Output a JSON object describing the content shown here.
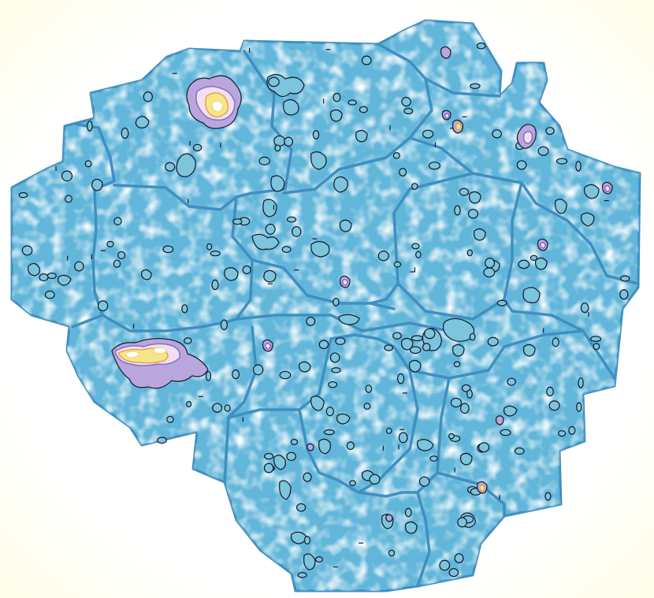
{
  "map": {
    "colors": {
      "land": "#62b6da",
      "border": "#3f8fc0",
      "contour": "#14182a",
      "low_density": "#7cc5dc",
      "mid_density": "#b9a6dc",
      "high_density": "#f7e58a",
      "peak": "#ffffff"
    },
    "regions": [
      {
        "id": "north-west-1"
      },
      {
        "id": "north-west-2"
      },
      {
        "id": "north-central"
      },
      {
        "id": "north-east-1"
      },
      {
        "id": "north-east-2"
      },
      {
        "id": "west"
      },
      {
        "id": "central-west"
      },
      {
        "id": "central"
      },
      {
        "id": "east"
      },
      {
        "id": "south-west"
      },
      {
        "id": "south-central"
      },
      {
        "id": "south-east"
      },
      {
        "id": "south"
      }
    ],
    "hotspots": [
      {
        "id": "hotspot-north-west",
        "level": "high"
      },
      {
        "id": "hotspot-west",
        "level": "high"
      },
      {
        "id": "hotspot-north-east",
        "level": "medium"
      },
      {
        "id": "hotspot-east",
        "level": "medium"
      },
      {
        "id": "hotspot-central",
        "level": "medium"
      },
      {
        "id": "hotspot-south-east",
        "level": "medium"
      }
    ]
  }
}
